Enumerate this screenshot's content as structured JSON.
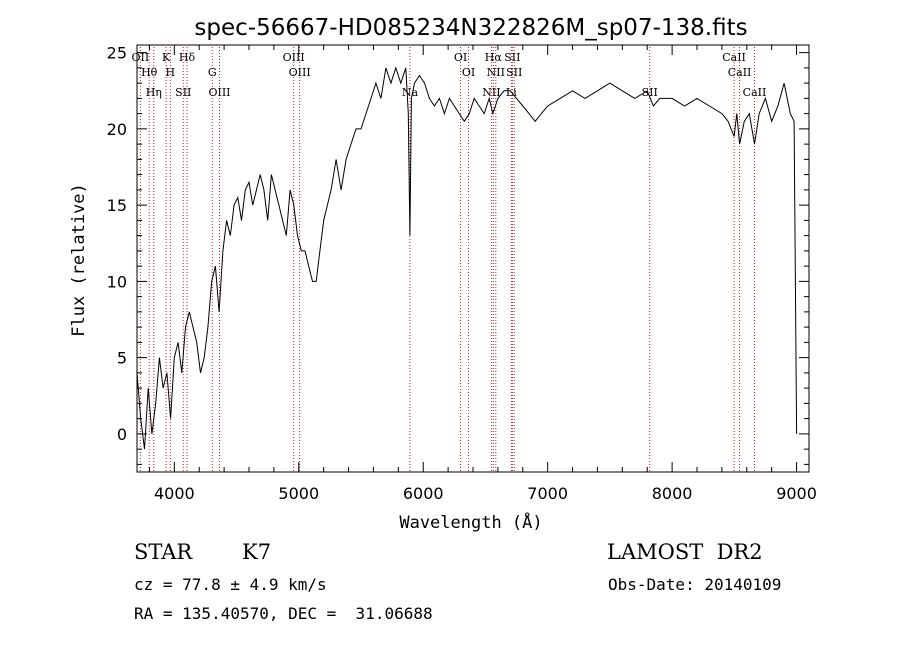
{
  "colors": {
    "spectrum": "#000000",
    "line_marker": "#b22222",
    "axes": "#000000"
  },
  "chart_data": {
    "type": "line",
    "title": "spec-56667-HD085234N322826M_sp07-138.fits",
    "xlabel": "Wavelength (Å)",
    "ylabel": "Flux (relative)",
    "xlim": [
      3700,
      9100
    ],
    "ylim": [
      -2.5,
      25.5
    ],
    "xticks": [
      4000,
      5000,
      6000,
      7000,
      8000,
      9000
    ],
    "yticks": [
      0,
      5,
      10,
      15,
      20,
      25
    ],
    "grid": false,
    "series": [
      {
        "x": [
          3700,
          3730,
          3760,
          3790,
          3820,
          3850,
          3880,
          3910,
          3940,
          3970,
          4000,
          4030,
          4060,
          4090,
          4120,
          4150,
          4180,
          4210,
          4240,
          4270,
          4300,
          4330,
          4360,
          4390,
          4420,
          4450,
          4480,
          4510,
          4540,
          4570,
          4600,
          4630,
          4660,
          4690,
          4720,
          4750,
          4780,
          4810,
          4840,
          4870,
          4900,
          4930,
          4960,
          4990,
          5020,
          5050,
          5080,
          5110,
          5140,
          5170,
          5200,
          5230,
          5260,
          5300,
          5340,
          5380,
          5420,
          5460,
          5500,
          5540,
          5580,
          5620,
          5660,
          5700,
          5740,
          5780,
          5820,
          5860,
          5880,
          5893,
          5905,
          5930,
          5970,
          6010,
          6050,
          6090,
          6130,
          6170,
          6210,
          6250,
          6290,
          6330,
          6370,
          6410,
          6450,
          6490,
          6530,
          6560,
          6600,
          6650,
          6700,
          6750,
          6800,
          6850,
          6900,
          6950,
          7000,
          7100,
          7200,
          7300,
          7400,
          7500,
          7600,
          7700,
          7800,
          7850,
          7900,
          8000,
          8100,
          8200,
          8300,
          8400,
          8450,
          8498,
          8520,
          8542,
          8580,
          8620,
          8662,
          8700,
          8750,
          8800,
          8850,
          8900,
          8950,
          8980,
          9000
        ],
        "y": [
          4,
          1,
          -1,
          3,
          0,
          2,
          5,
          3,
          4,
          1,
          5,
          6,
          4,
          7,
          8,
          7,
          6,
          4,
          5,
          7,
          10,
          11,
          8,
          12,
          14,
          13,
          15,
          15.5,
          14,
          16,
          16.5,
          15,
          16,
          17,
          16,
          14,
          17,
          16,
          15,
          14,
          13,
          16,
          15,
          13,
          12,
          12,
          11,
          10,
          10,
          12,
          14,
          15,
          16,
          18,
          16,
          18,
          19,
          20,
          20,
          21,
          22,
          23,
          22,
          24,
          23,
          24,
          23,
          24,
          21,
          13,
          22,
          23,
          23.5,
          23,
          22,
          21.5,
          22,
          21,
          22,
          21.5,
          21,
          20.5,
          21,
          22,
          21.5,
          21,
          22,
          21,
          22,
          22.5,
          22.5,
          22,
          21.5,
          21,
          20.5,
          21,
          21.5,
          22,
          22.5,
          22,
          22.5,
          23,
          22.5,
          22,
          22.5,
          21.5,
          22,
          22,
          21.5,
          22,
          21.5,
          21,
          20.5,
          19.5,
          21,
          19,
          20.5,
          21,
          19,
          21,
          22,
          20.5,
          21.5,
          23,
          21,
          20.5,
          0
        ]
      }
    ],
    "line_marks": [
      {
        "label": "OII",
        "x": 3727
      },
      {
        "label": "Hθ",
        "x": 3798
      },
      {
        "label": "Hη",
        "x": 3835
      },
      {
        "label": "K",
        "x": 3934
      },
      {
        "label": "H",
        "x": 3968
      },
      {
        "label": "SII",
        "x": 4072
      },
      {
        "label": "Hδ",
        "x": 4102
      },
      {
        "label": "G",
        "x": 4305
      },
      {
        "label": "OIII",
        "x": 4363
      },
      {
        "label": "OIII",
        "x": 4959
      },
      {
        "label": "OIII",
        "x": 5007
      },
      {
        "label": "Na",
        "x": 5893
      },
      {
        "label": "OI",
        "x": 6300
      },
      {
        "label": "OI",
        "x": 6364
      },
      {
        "label": "NII",
        "x": 6548
      },
      {
        "label": "Hα",
        "x": 6563
      },
      {
        "label": "NII",
        "x": 6583
      },
      {
        "label": "Li",
        "x": 6708
      },
      {
        "label": "SII",
        "x": 6716
      },
      {
        "label": "SII",
        "x": 6731
      },
      {
        "label": "SII",
        "x": 7820
      },
      {
        "label": "CaII",
        "x": 8498
      },
      {
        "label": "CaII",
        "x": 8542
      },
      {
        "label": "CaII",
        "x": 8662
      }
    ]
  },
  "info": {
    "class": "STAR",
    "subclass": "K7",
    "survey": "LAMOST  DR2",
    "cz": "cz = 77.8 ± 4.9 km/s",
    "obs_date": "Obs-Date: 20140109",
    "radec": "RA = 135.40570, DEC =  31.06688"
  }
}
